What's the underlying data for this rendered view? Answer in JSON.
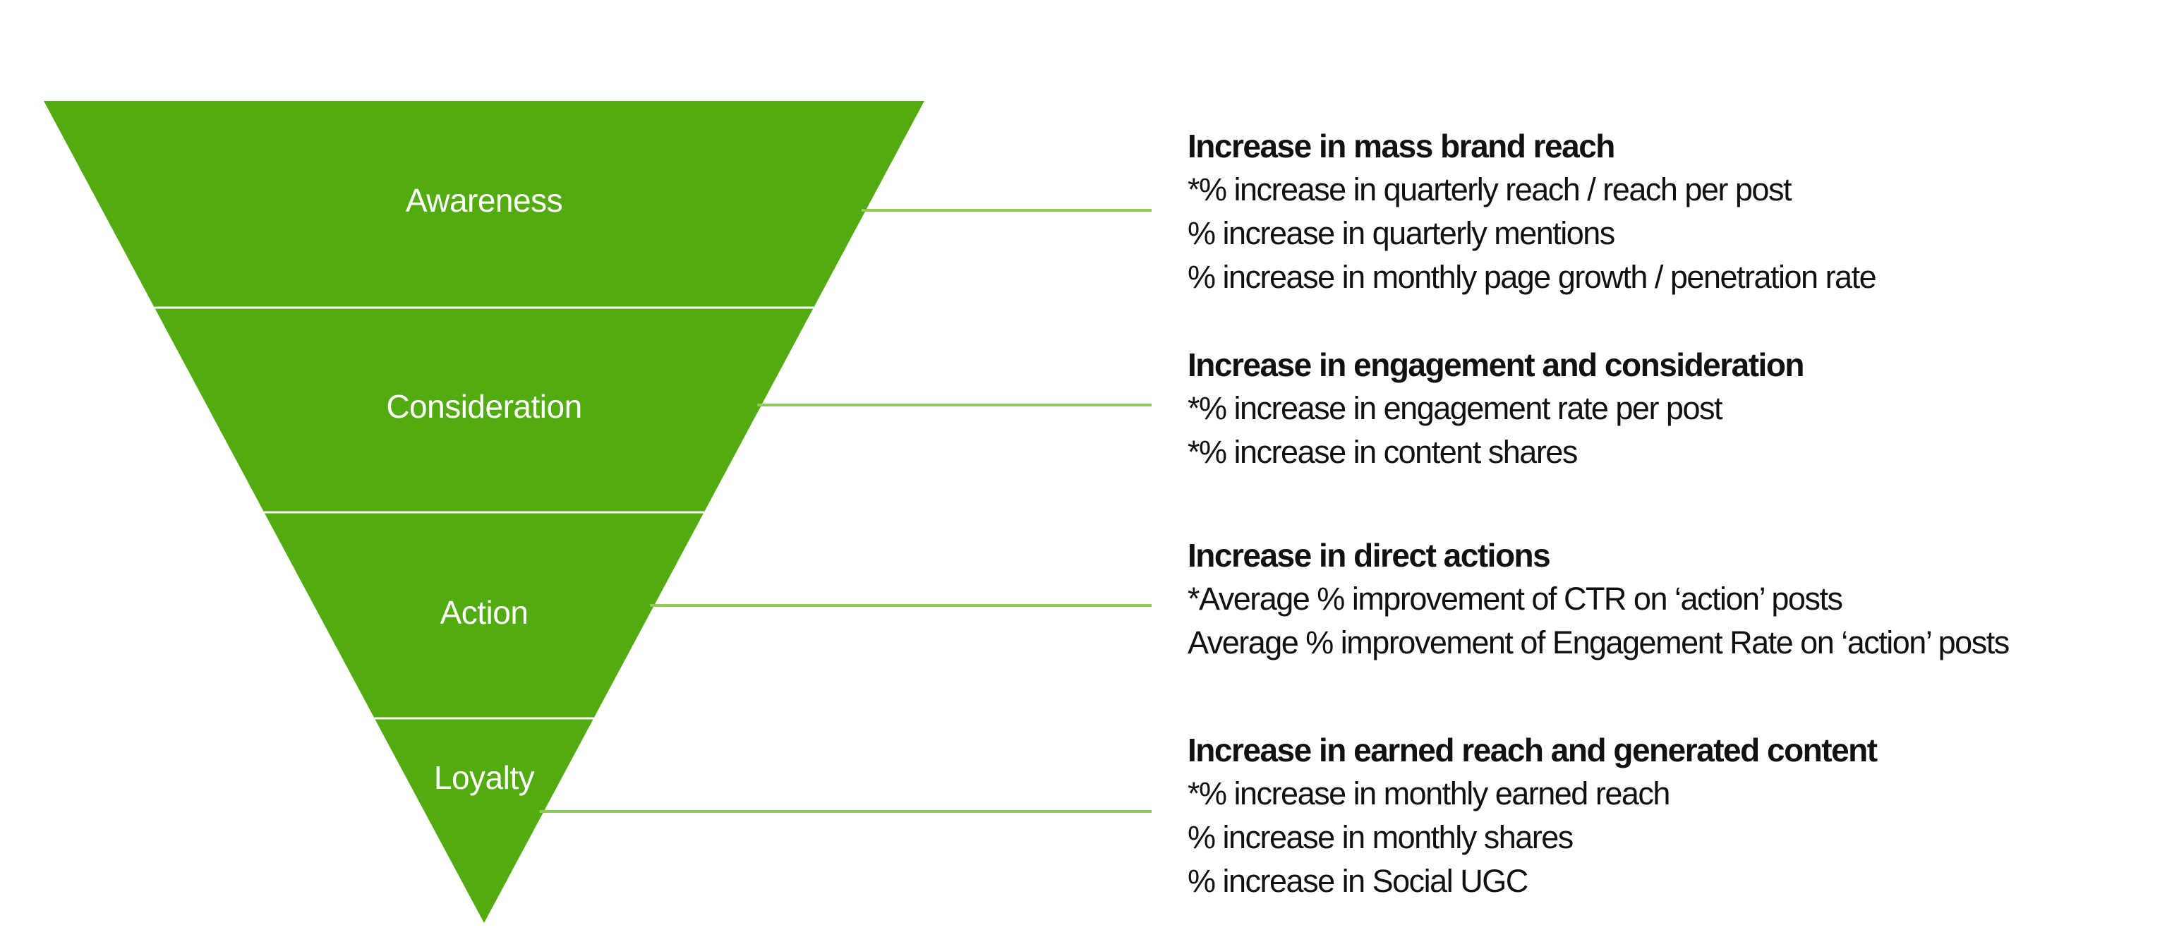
{
  "colors": {
    "funnel_fill": "#52ab10",
    "connector": "#8fcc57",
    "stage_label": "#ffffff",
    "text": "#111111"
  },
  "stages": [
    {
      "label": "Awareness",
      "heading": "Increase in mass brand reach",
      "metrics": [
        "*% increase in quarterly reach / reach per post",
        "% increase in quarterly mentions",
        "% increase in monthly page growth / penetration rate"
      ]
    },
    {
      "label": "Consideration",
      "heading": "Increase in engagement and consideration",
      "metrics": [
        "*% increase in engagement rate per post",
        "*% increase in content shares"
      ]
    },
    {
      "label": "Action",
      "heading": "Increase in direct actions",
      "metrics": [
        "*Average % improvement of CTR on ‘action’ posts",
        "Average % improvement of Engagement Rate on ‘action’ posts"
      ]
    },
    {
      "label": "Loyalty",
      "heading": "Increase in earned reach and generated content",
      "metrics": [
        "*% increase in monthly earned reach",
        "% increase in monthly shares",
        "% increase in Social UGC"
      ]
    }
  ]
}
